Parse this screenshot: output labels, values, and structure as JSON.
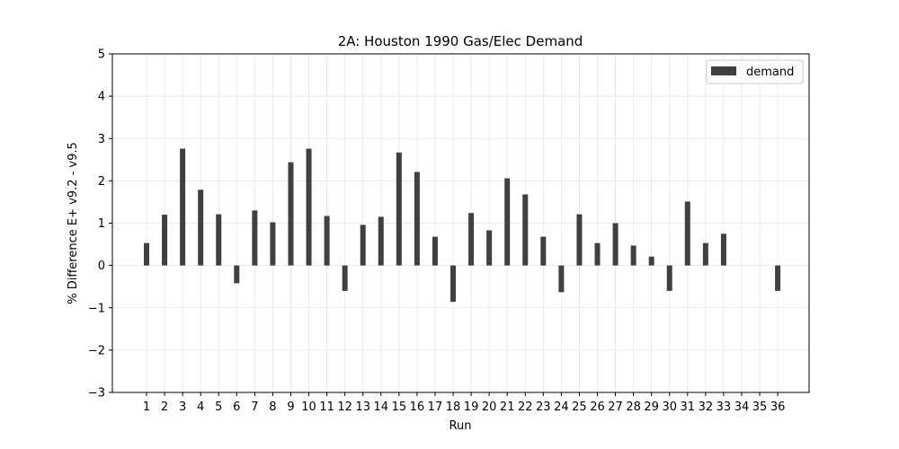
{
  "chart_data": {
    "type": "bar",
    "title": "2A: Houston 1990 Gas/Elec Demand",
    "xlabel": "Run",
    "ylabel": "% Difference E+ v9.2 - v9.5",
    "ylim": [
      -3,
      5
    ],
    "yticks": [
      -3,
      -2,
      -1,
      0,
      1,
      2,
      3,
      4,
      5
    ],
    "ytick_labels": [
      "−3",
      "−2",
      "−1",
      "0",
      "1",
      "2",
      "3",
      "4",
      "5"
    ],
    "grid": true,
    "legend_position": "top-right",
    "categories": [
      "1",
      "2",
      "3",
      "4",
      "5",
      "6",
      "7",
      "8",
      "9",
      "10",
      "11",
      "12",
      "13",
      "14",
      "15",
      "16",
      "17",
      "18",
      "19",
      "20",
      "21",
      "22",
      "23",
      "24",
      "25",
      "26",
      "27",
      "28",
      "29",
      "30",
      "31",
      "32",
      "33",
      "34",
      "35",
      "36"
    ],
    "series": [
      {
        "name": "demand",
        "color": "#404040",
        "values": [
          0.53,
          1.2,
          2.76,
          1.79,
          1.21,
          -0.42,
          1.3,
          1.02,
          2.44,
          2.76,
          1.17,
          -0.6,
          0.96,
          1.15,
          2.67,
          2.21,
          0.68,
          -0.86,
          1.24,
          0.83,
          2.06,
          1.68,
          0.68,
          -0.63,
          1.21,
          0.53,
          1.0,
          0.47,
          0.21,
          -0.6,
          1.51,
          0.53,
          0.75,
          0,
          0,
          -0.6
        ]
      }
    ]
  }
}
